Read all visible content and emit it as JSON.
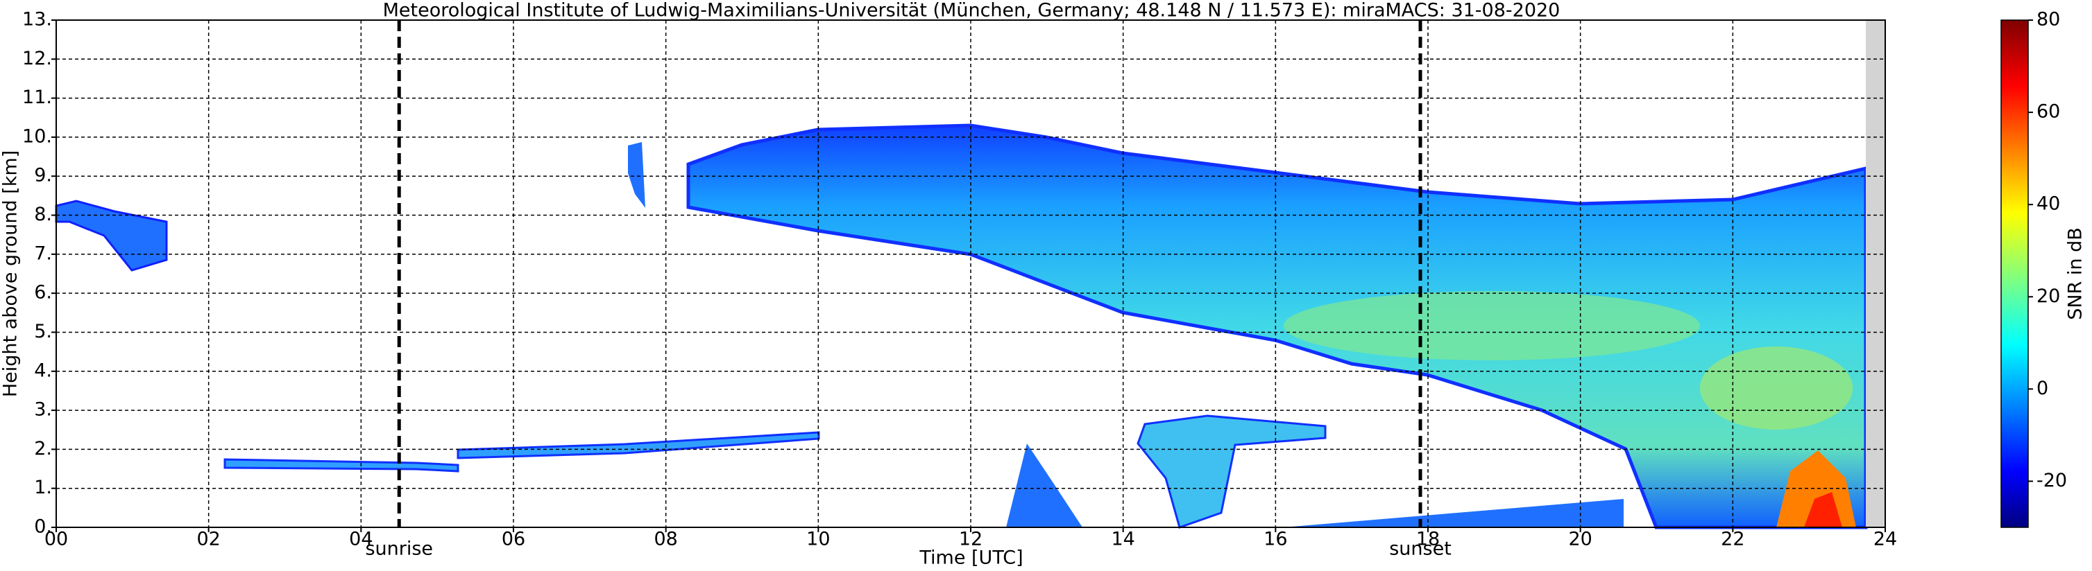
{
  "chart_data": {
    "type": "heatmap",
    "title": "Meteorological Institute of Ludwig-Maximilians-Universität (München, Germany; 48.148 N / 11.573 E):    miraMACS: 31-08-2020",
    "x_label": "Time [UTC]",
    "y_label": "Height above ground [km]",
    "xlim": [
      0,
      24
    ],
    "xticks": [
      {
        "value": 0,
        "label": "00"
      },
      {
        "value": 2,
        "label": "02"
      },
      {
        "value": 4,
        "label": "04"
      },
      {
        "value": 6,
        "label": "06"
      },
      {
        "value": 8,
        "label": "08"
      },
      10,
      12,
      14,
      16,
      18,
      20,
      22,
      24
    ],
    "ylim": [
      0,
      13
    ],
    "yticks": [
      {
        "value": 0,
        "label": "0."
      },
      {
        "value": 1,
        "label": "1."
      },
      {
        "value": 2,
        "label": "2."
      },
      {
        "value": 3,
        "label": "3."
      },
      {
        "value": 4,
        "label": "4."
      },
      {
        "value": 5,
        "label": "5."
      },
      {
        "value": 6,
        "label": "6."
      },
      {
        "value": 7,
        "label": "7."
      },
      {
        "value": 8,
        "label": "8."
      },
      {
        "value": 9,
        "label": "9."
      },
      {
        "value": 10,
        "label": "10."
      },
      {
        "value": 11,
        "label": "11."
      },
      {
        "value": 12,
        "label": "12."
      },
      {
        "value": 13,
        "label": "13."
      }
    ],
    "grid": true,
    "annotations": [
      {
        "text": "sunrise",
        "x": 4.5
      },
      {
        "text": "sunset",
        "x": 17.9
      }
    ],
    "colorbar": {
      "label": "SNR in dB",
      "lim": [
        -30,
        80
      ],
      "ticks": [
        -20,
        0,
        20,
        40,
        60,
        80
      ],
      "colormap": "jet"
    }
  }
}
